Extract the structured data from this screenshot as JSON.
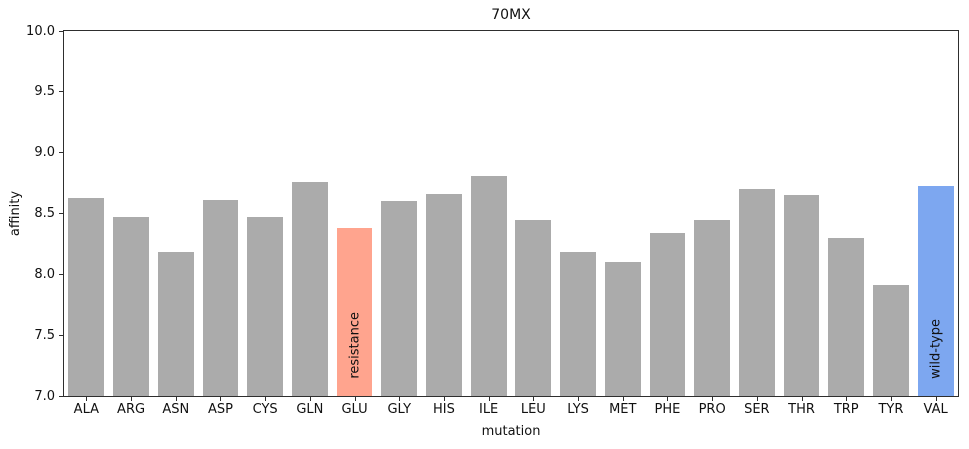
{
  "chart_data": {
    "type": "bar",
    "title": "70MX",
    "xlabel": "mutation",
    "ylabel": "affinity",
    "ylim": [
      7.0,
      10.0
    ],
    "yticks": [
      7.0,
      7.5,
      8.0,
      8.5,
      9.0,
      9.5,
      10.0
    ],
    "grid": false,
    "legend_position": "none",
    "bar_color": "#ababab",
    "categories": [
      "ALA",
      "ARG",
      "ASN",
      "ASP",
      "CYS",
      "GLN",
      "GLU",
      "GLY",
      "HIS",
      "ILE",
      "LEU",
      "LYS",
      "MET",
      "PHE",
      "PRO",
      "SER",
      "THR",
      "TRP",
      "TYR",
      "VAL"
    ],
    "values": [
      8.63,
      8.47,
      8.18,
      8.61,
      8.47,
      8.76,
      8.38,
      8.6,
      8.66,
      8.81,
      8.45,
      8.18,
      8.1,
      8.34,
      8.45,
      8.7,
      8.65,
      8.3,
      7.91,
      8.73
    ],
    "highlights": [
      {
        "index": 6,
        "category": "GLU",
        "color": "#ffa48e",
        "label": "resistance"
      },
      {
        "index": 19,
        "category": "VAL",
        "color": "#7da7f0",
        "label": "wild-type"
      }
    ]
  }
}
